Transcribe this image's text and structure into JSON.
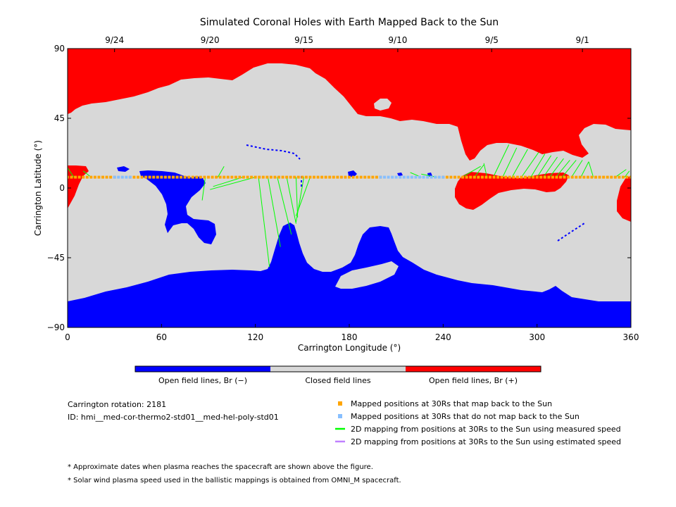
{
  "chart_data": {
    "type": "heatmap",
    "title": "Simulated Coronal Holes with Earth Mapped Back to the Sun",
    "xlabel": "Carrington Longitude (°)",
    "ylabel": "Carrington Latitude (°)",
    "xlim": [
      0,
      360
    ],
    "ylim": [
      -90,
      90
    ],
    "x_ticks": [
      0,
      60,
      120,
      180,
      240,
      300,
      360
    ],
    "y_ticks": [
      -90,
      -45,
      0,
      45,
      90
    ],
    "top_axis": {
      "label_note": "Approximate dates when plasma reaches the spacecraft",
      "ticks": [
        {
          "label": "9/24",
          "lon": 30
        },
        {
          "label": "9/20",
          "lon": 91
        },
        {
          "label": "9/15",
          "lon": 151
        },
        {
          "label": "9/10",
          "lon": 211
        },
        {
          "label": "9/5",
          "lon": 271
        },
        {
          "label": "9/1",
          "lon": 329
        }
      ]
    },
    "colors": {
      "open_negative": "#0000ff",
      "closed": "#d8d8d8",
      "open_positive": "#ff0000",
      "mapped_back": "#ffa500",
      "not_mapped": "#87bfff",
      "measured_speed": "#00ff00",
      "estimated_speed": "#c080ff"
    },
    "colorbar": [
      {
        "key": "open_negative",
        "label": "Open field lines, Br (−)"
      },
      {
        "key": "closed",
        "label": "Closed field lines"
      },
      {
        "key": "open_positive",
        "label": "Open field lines, Br (+)"
      }
    ],
    "legend": [
      {
        "key": "mapped_back",
        "marker": "square",
        "label": "Mapped positions at 30Rs that map back to the Sun"
      },
      {
        "key": "not_mapped",
        "marker": "square",
        "label": "Mapped positions at 30Rs that do not map back to the Sun"
      },
      {
        "key": "measured_speed",
        "marker": "line",
        "label": "2D mapping from positions at 30Rs to the Sun using measured speed"
      },
      {
        "key": "estimated_speed",
        "marker": "line",
        "label": "2D mapping from positions at 30Rs to the Sun using estimated speed"
      }
    ],
    "mapping_latitude": 7,
    "unmapped_ranges": [
      [
        30,
        40
      ],
      [
        200,
        240
      ]
    ],
    "mapped_ranges": [
      [
        0,
        30
      ],
      [
        40,
        200
      ],
      [
        240,
        360
      ]
    ],
    "mapping_lines": [
      {
        "from_lon": 4,
        "to": [
          0,
          13
        ]
      },
      {
        "from_lon": 15,
        "to": [
          10,
          11
        ]
      },
      {
        "from_lon": 88,
        "to": [
          86,
          -8
        ]
      },
      {
        "from_lon": 96,
        "to": [
          100,
          14
        ]
      },
      {
        "from_lon": 112,
        "to": [
          93,
          1
        ]
      },
      {
        "from_lon": 120,
        "to": [
          91,
          -1
        ]
      },
      {
        "from_lon": 122,
        "to": [
          129,
          -51
        ]
      },
      {
        "from_lon": 128,
        "to": [
          136,
          -38
        ]
      },
      {
        "from_lon": 134,
        "to": [
          143,
          -30
        ]
      },
      {
        "from_lon": 140,
        "to": [
          146,
          -23
        ]
      },
      {
        "from_lon": 146,
        "to": [
          147,
          -19
        ]
      },
      {
        "from_lon": 151,
        "to": [
          146,
          -22
        ]
      },
      {
        "from_lon": 155,
        "to": [
          146,
          -18
        ]
      },
      {
        "from_lon": 226,
        "to": [
          219,
          10
        ]
      },
      {
        "from_lon": 236,
        "to": [
          226,
          9
        ]
      },
      {
        "from_lon": 252,
        "to": [
          264,
          14
        ]
      },
      {
        "from_lon": 260,
        "to": [
          266,
          15
        ]
      },
      {
        "from_lon": 268,
        "to": [
          266,
          16
        ]
      },
      {
        "from_lon": 272,
        "to": [
          282,
          28
        ]
      },
      {
        "from_lon": 278,
        "to": [
          287,
          26
        ]
      },
      {
        "from_lon": 284,
        "to": [
          294,
          25
        ]
      },
      {
        "from_lon": 290,
        "to": [
          301,
          23
        ]
      },
      {
        "from_lon": 296,
        "to": [
          305,
          22
        ]
      },
      {
        "from_lon": 300,
        "to": [
          309,
          21
        ]
      },
      {
        "from_lon": 304,
        "to": [
          313,
          20
        ]
      },
      {
        "from_lon": 308,
        "to": [
          317,
          19
        ]
      },
      {
        "from_lon": 312,
        "to": [
          321,
          18
        ]
      },
      {
        "from_lon": 316,
        "to": [
          325,
          18
        ]
      },
      {
        "from_lon": 322,
        "to": [
          329,
          18
        ]
      },
      {
        "from_lon": 328,
        "to": [
          333,
          17
        ]
      },
      {
        "from_lon": 336,
        "to": [
          333,
          17
        ]
      },
      {
        "from_lon": 350,
        "to": [
          357,
          12
        ]
      },
      {
        "from_lon": 356,
        "to": [
          359,
          11
        ]
      }
    ]
  },
  "info": {
    "rotation": "Carrington rotation: 2181",
    "id": "ID: hmi__med-cor-thermo2-std01__med-hel-poly-std01"
  },
  "footnotes": [
    "* Approximate dates when plasma reaches the spacecraft are shown above the figure.",
    "* Solar wind plasma speed used in the ballistic mappings is obtained from OMNI_M spacecraft."
  ]
}
